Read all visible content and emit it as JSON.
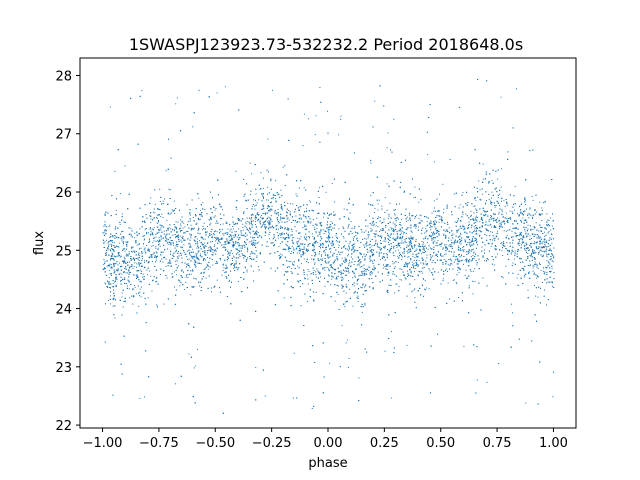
{
  "chart_data": {
    "type": "scatter",
    "title": "1SWASPJ123923.73-532232.2 Period 2018648.0s",
    "xlabel": "phase",
    "ylabel": "flux",
    "xlim": [
      -1.1,
      1.1
    ],
    "ylim": [
      21.95,
      28.3
    ],
    "xticks": [
      -1.0,
      -0.75,
      -0.5,
      -0.25,
      0.0,
      0.25,
      0.5,
      0.75,
      1.0
    ],
    "xtick_labels": [
      "−1.00",
      "−0.75",
      "−0.50",
      "−0.25",
      "0.00",
      "0.25",
      "0.50",
      "0.75",
      "1.00"
    ],
    "yticks": [
      22,
      23,
      24,
      25,
      26,
      27,
      28
    ],
    "ytick_labels": [
      "22",
      "23",
      "24",
      "25",
      "26",
      "27",
      "28"
    ],
    "grid": false,
    "series": [
      {
        "color": "#1f77b4",
        "marker_size": 1,
        "phase_range": [
          -1.0,
          1.0
        ],
        "flux_median": 25.0,
        "flux_core_spread": [
          24.2,
          26.0
        ],
        "flux_outlier_range": [
          22.2,
          28.0
        ],
        "x": [
          -1.0,
          -0.95,
          -0.9,
          -0.85,
          -0.8,
          -0.75,
          -0.7,
          -0.65,
          -0.6,
          -0.55,
          -0.5,
          -0.45,
          -0.4,
          -0.35,
          -0.3,
          -0.25,
          -0.2,
          -0.15,
          -0.1,
          -0.05,
          0.0,
          0.05,
          0.1,
          0.15,
          0.2,
          0.25,
          0.3,
          0.35,
          0.4,
          0.45,
          0.5,
          0.55,
          0.6,
          0.65,
          0.7,
          0.75,
          0.8,
          0.85,
          0.9,
          0.95,
          1.0
        ],
        "y": [
          25.0,
          24.8,
          24.9,
          24.7,
          25.1,
          25.2,
          25.2,
          25.1,
          25.0,
          25.1,
          25.2,
          25.0,
          25.1,
          25.3,
          25.5,
          25.6,
          25.3,
          25.2,
          25.1,
          25.0,
          25.0,
          24.8,
          24.9,
          24.7,
          25.1,
          25.2,
          25.2,
          25.1,
          25.0,
          25.1,
          25.2,
          25.0,
          25.1,
          25.3,
          25.5,
          25.6,
          25.3,
          25.2,
          25.1,
          25.0,
          25.0
        ]
      }
    ]
  }
}
